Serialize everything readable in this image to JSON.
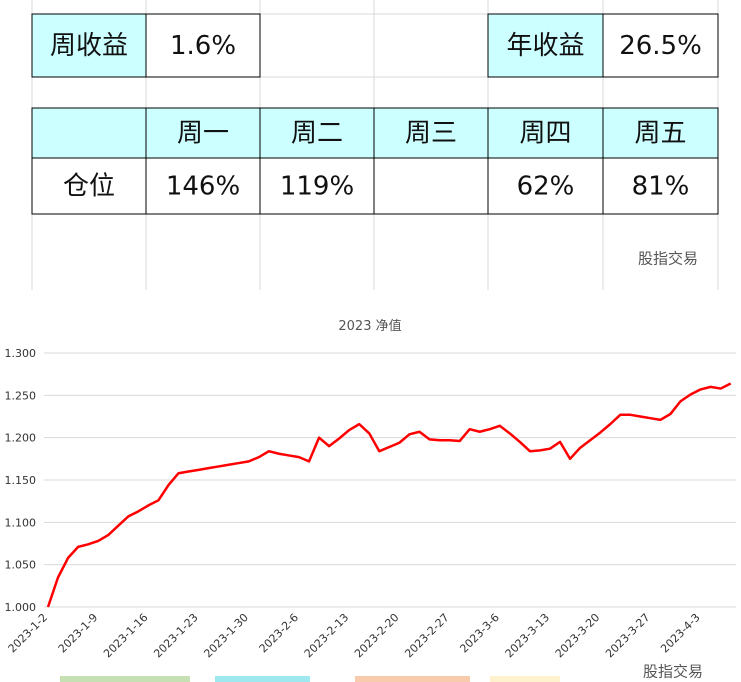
{
  "table": {
    "rows": [
      [
        "周收益",
        "1.6%",
        null,
        null,
        "年收益",
        "26.5%"
      ],
      [
        null,
        "周一",
        "周二",
        "周三",
        "周四",
        "周五"
      ],
      [
        "仓位",
        "146%",
        "119%",
        null,
        "62%",
        "81%"
      ]
    ]
  },
  "watermark": "股指交易",
  "footer_watermark": "股指交易",
  "chart_data": {
    "type": "line",
    "title": "2023 净值",
    "categories": [
      "2023-1-2",
      null,
      null,
      null,
      null,
      "2023-1-9",
      null,
      null,
      null,
      null,
      "2023-1-16",
      null,
      null,
      null,
      null,
      "2023-1-23",
      null,
      null,
      null,
      null,
      "2023-1-30",
      null,
      null,
      null,
      null,
      "2023-2-6",
      null,
      null,
      null,
      null,
      "2023-2-13",
      null,
      null,
      null,
      null,
      "2023-2-20",
      null,
      null,
      null,
      null,
      "2023-2-27",
      null,
      null,
      null,
      null,
      "2023-3-6",
      null,
      null,
      null,
      null,
      "2023-3-13",
      null,
      null,
      null,
      null,
      "2023-3-20",
      null,
      null,
      null,
      null,
      "2023-3-27",
      null,
      null,
      null,
      null,
      "2023-4-3",
      null,
      null,
      null
    ],
    "series": [
      {
        "name": "2023 净值",
        "color": "#ff0000",
        "values": [
          1.0,
          1.035,
          1.058,
          1.071,
          1.074,
          1.078,
          1.085,
          1.096,
          1.107,
          1.113,
          1.12,
          1.126,
          1.144,
          1.158,
          1.16,
          1.162,
          1.164,
          1.166,
          1.168,
          1.17,
          1.172,
          1.177,
          1.184,
          1.181,
          1.179,
          1.177,
          1.172,
          1.2,
          1.19,
          1.199,
          1.209,
          1.216,
          1.205,
          1.184,
          1.189,
          1.194,
          1.204,
          1.207,
          1.198,
          1.197,
          1.197,
          1.196,
          1.21,
          1.207,
          1.21,
          1.214,
          1.205,
          1.195,
          1.184,
          1.185,
          1.187,
          1.195,
          1.175,
          1.188,
          1.197,
          1.206,
          1.216,
          1.227,
          1.227,
          1.225,
          1.223,
          1.221,
          1.228,
          1.243,
          1.251,
          1.257,
          1.26,
          1.258,
          1.264
        ]
      }
    ],
    "ylim": [
      1.0,
      1.3
    ],
    "yticks": [
      {
        "value": 1.0,
        "label": "1.000"
      },
      {
        "value": 1.05,
        "label": "1.050"
      },
      {
        "value": 1.1,
        "label": "1.100"
      },
      {
        "value": 1.15,
        "label": "1.150"
      },
      {
        "value": 1.2,
        "label": "1.200"
      },
      {
        "value": 1.25,
        "label": "1.250"
      },
      {
        "value": 1.3,
        "label": "1.300"
      }
    ],
    "grid": true
  }
}
